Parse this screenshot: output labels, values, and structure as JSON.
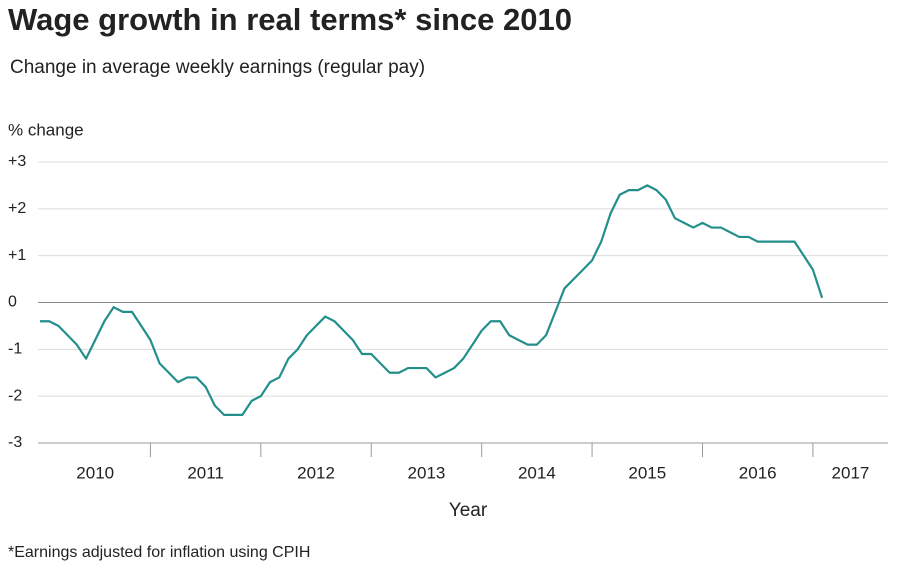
{
  "chart_data": {
    "type": "line",
    "title": "Wage growth in real terms* since 2010",
    "subtitle": "Change in average weekly earnings (regular pay)",
    "y_label": "% change",
    "x_label": "Year",
    "footnote": "*Earnings adjusted for inflation using CPIH",
    "x_tick_labels": [
      "2010",
      "2011",
      "2012",
      "2013",
      "2014",
      "2015",
      "2016",
      "2017"
    ],
    "xlim": [
      2010,
      2017.68
    ],
    "xticks": [
      2011,
      2012,
      2013,
      2014,
      2015,
      2016,
      2017
    ],
    "ylim": [
      -3,
      3
    ],
    "yticks": [
      {
        "value": 3,
        "label": "+3"
      },
      {
        "value": 2,
        "label": "+2"
      },
      {
        "value": 1,
        "label": "+1"
      },
      0,
      -1,
      -2,
      -3
    ],
    "grid": true,
    "x": [
      2010,
      2010.083,
      2010.167,
      2010.25,
      2010.333,
      2010.417,
      2010.5,
      2010.583,
      2010.667,
      2010.75,
      2010.833,
      2010.917,
      2011,
      2011.083,
      2011.167,
      2011.25,
      2011.333,
      2011.417,
      2011.5,
      2011.583,
      2011.667,
      2011.75,
      2011.833,
      2011.917,
      2012,
      2012.083,
      2012.167,
      2012.25,
      2012.333,
      2012.417,
      2012.5,
      2012.583,
      2012.667,
      2012.75,
      2012.833,
      2012.917,
      2013,
      2013.083,
      2013.167,
      2013.25,
      2013.333,
      2013.417,
      2013.5,
      2013.583,
      2013.667,
      2013.75,
      2013.833,
      2013.917,
      2014,
      2014.083,
      2014.167,
      2014.25,
      2014.333,
      2014.417,
      2014.5,
      2014.583,
      2014.667,
      2014.75,
      2014.833,
      2014.917,
      2015,
      2015.083,
      2015.167,
      2015.25,
      2015.333,
      2015.417,
      2015.5,
      2015.583,
      2015.667,
      2015.75,
      2015.833,
      2015.917,
      2016,
      2016.083,
      2016.167,
      2016.25,
      2016.333,
      2016.417,
      2016.5,
      2016.583,
      2016.667,
      2016.75,
      2016.833,
      2016.917,
      2017,
      2017.083
    ],
    "series": [
      {
        "color": "#238f8b",
        "values": [
          -0.4,
          -0.4,
          -0.5,
          -0.7,
          -0.9,
          -1.2,
          -0.8,
          -0.4,
          -0.1,
          -0.2,
          -0.2,
          -0.5,
          -0.8,
          -1.3,
          -1.5,
          -1.7,
          -1.6,
          -1.6,
          -1.8,
          -2.2,
          -2.4,
          -2.4,
          -2.4,
          -2.1,
          -2.0,
          -1.7,
          -1.6,
          -1.2,
          -1.0,
          -0.7,
          -0.5,
          -0.3,
          -0.4,
          -0.6,
          -0.8,
          -1.1,
          -1.1,
          -1.3,
          -1.5,
          -1.5,
          -1.4,
          -1.4,
          -1.4,
          -1.6,
          -1.5,
          -1.4,
          -1.2,
          -0.9,
          -0.6,
          -0.4,
          -0.4,
          -0.7,
          -0.8,
          -0.9,
          -0.9,
          -0.7,
          -0.2,
          0.3,
          0.5,
          0.7,
          0.9,
          1.3,
          1.9,
          2.3,
          2.4,
          2.4,
          2.5,
          2.4,
          2.2,
          1.8,
          1.7,
          1.6,
          1.7,
          1.6,
          1.6,
          1.5,
          1.4,
          1.4,
          1.3,
          1.3,
          1.3,
          1.3,
          1.3,
          1.0,
          0.7,
          0.1
        ]
      }
    ]
  }
}
